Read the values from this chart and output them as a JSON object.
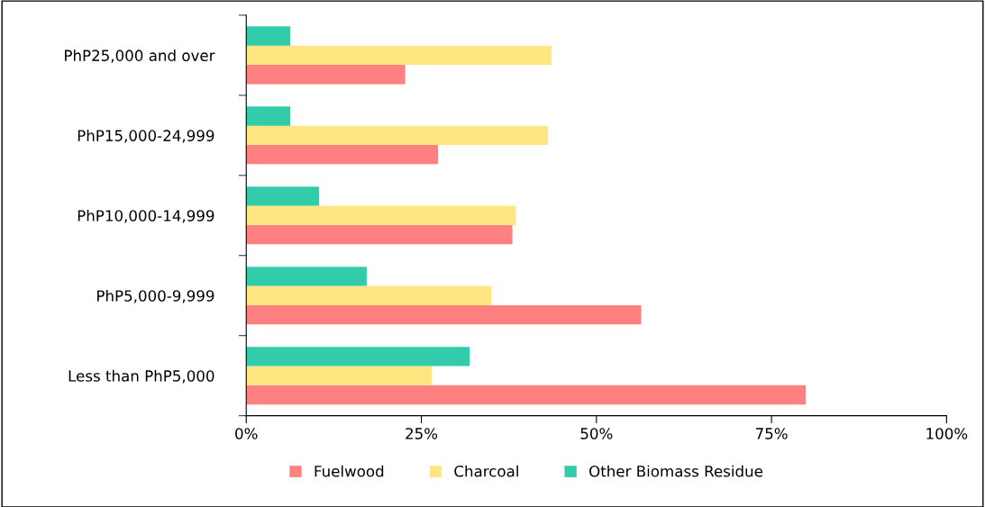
{
  "chart_data": {
    "type": "bar",
    "orientation": "horizontal",
    "categories": [
      "PhP25,000 and over",
      "PhP15,000-24,999",
      "PhP10,000-14,999",
      "PhP5,000-9,999",
      "Less than PhP5,000"
    ],
    "series": [
      {
        "name": "Fuelwood",
        "color": "#ff8080",
        "values": [
          22.7,
          27.4,
          38.0,
          56.4,
          79.9
        ]
      },
      {
        "name": "Charcoal",
        "color": "#ffe680",
        "values": [
          43.6,
          43.1,
          38.5,
          35.0,
          26.5
        ]
      },
      {
        "name": "Other Biomass Residue",
        "color": "#33ccaa",
        "values": [
          6.3,
          6.3,
          10.4,
          17.2,
          31.9
        ]
      }
    ],
    "xlim": [
      0,
      100
    ],
    "xticks": [
      {
        "value": 0,
        "label": "0%"
      },
      {
        "value": 25,
        "label": "25%"
      },
      {
        "value": 50,
        "label": "50%"
      },
      {
        "value": 75,
        "label": "75%"
      },
      {
        "value": 100,
        "label": "100%"
      }
    ],
    "grid": false,
    "legend": "bottom"
  }
}
